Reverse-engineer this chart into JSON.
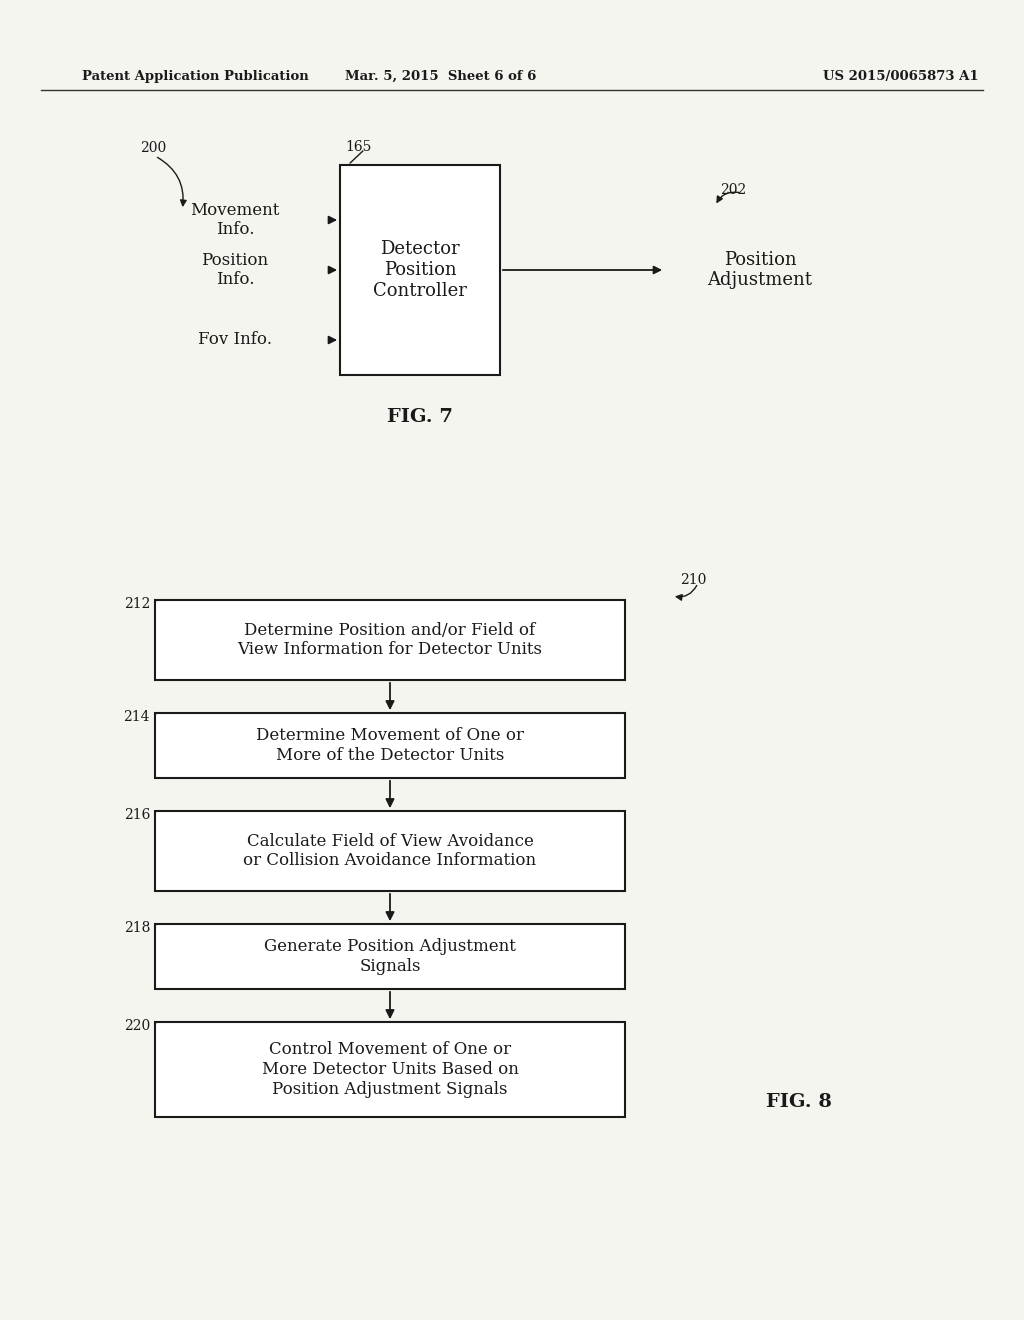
{
  "bg_color": "#f5f5f0",
  "header_left": "Patent Application Publication",
  "header_mid": "Mar. 5, 2015  Sheet 6 of 6",
  "header_right": "US 2015/0065873 A1",
  "fig7_label": "FIG. 7",
  "fig8_label": "FIG. 8",
  "fig7_box_text": "Detector\nPosition\nController",
  "fig7_box_num": "165",
  "fig7_inputs": [
    {
      "label": "Movement\nInfo.",
      "num": "200"
    },
    {
      "label": "Position\nInfo.",
      "num": null
    },
    {
      "label": "Fov Info.",
      "num": null
    }
  ],
  "fig7_output_text": "Position\nAdjustment",
  "fig7_output_num": "202",
  "fig8_num": "210",
  "fig8_steps": [
    {
      "num": "212",
      "text": "Determine Position and/or Field of\nView Information for Detector Units"
    },
    {
      "num": "214",
      "text": "Determine Movement of One or\nMore of the Detector Units"
    },
    {
      "num": "216",
      "text": "Calculate Field of View Avoidance\nor Collision Avoidance Information"
    },
    {
      "num": "218",
      "text": "Generate Position Adjustment\nSignals"
    },
    {
      "num": "220",
      "text": "Control Movement of One or\nMore Detector Units Based on\nPosition Adjustment Signals"
    }
  ],
  "box_facecolor": "#ffffff",
  "box_edgecolor": "#1a1a1a",
  "text_color": "#1a1a1a",
  "arrow_color": "#1a1a1a",
  "header_line_color": "#333333"
}
